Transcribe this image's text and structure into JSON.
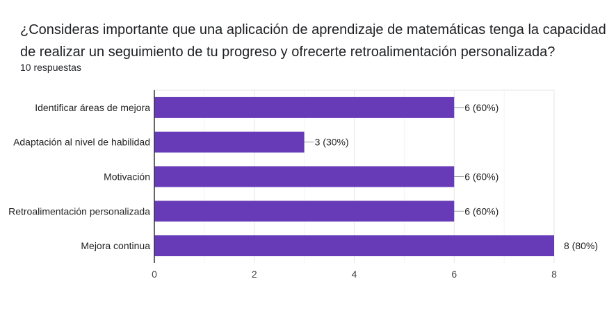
{
  "question": {
    "title": "¿Consideras importante que una aplicación de aprendizaje de matemáticas tenga la capacidad de realizar un seguimiento de tu progreso y ofrecerte retroalimentación personalizada?",
    "responses": "10 respuestas"
  },
  "colors": {
    "bar": "#673ab7",
    "grid": "#e6e6e6",
    "axis": "#333333",
    "leader": "#999999"
  },
  "chart_data": {
    "type": "bar",
    "orientation": "horizontal",
    "categories": [
      "Identificar áreas de mejora",
      "Adaptación al nivel de habilidad",
      "Motivación",
      "Retroalimentación personalizada",
      "Mejora continua"
    ],
    "values": [
      6,
      3,
      6,
      6,
      8
    ],
    "data_labels": [
      "6 (60%)",
      "3 (30%)",
      "6 (60%)",
      "6 (60%)",
      "8 (80%)"
    ],
    "xlim": [
      0,
      8
    ],
    "xticks": [
      0,
      2,
      4,
      6,
      8
    ],
    "grid": true,
    "legend": "none"
  }
}
